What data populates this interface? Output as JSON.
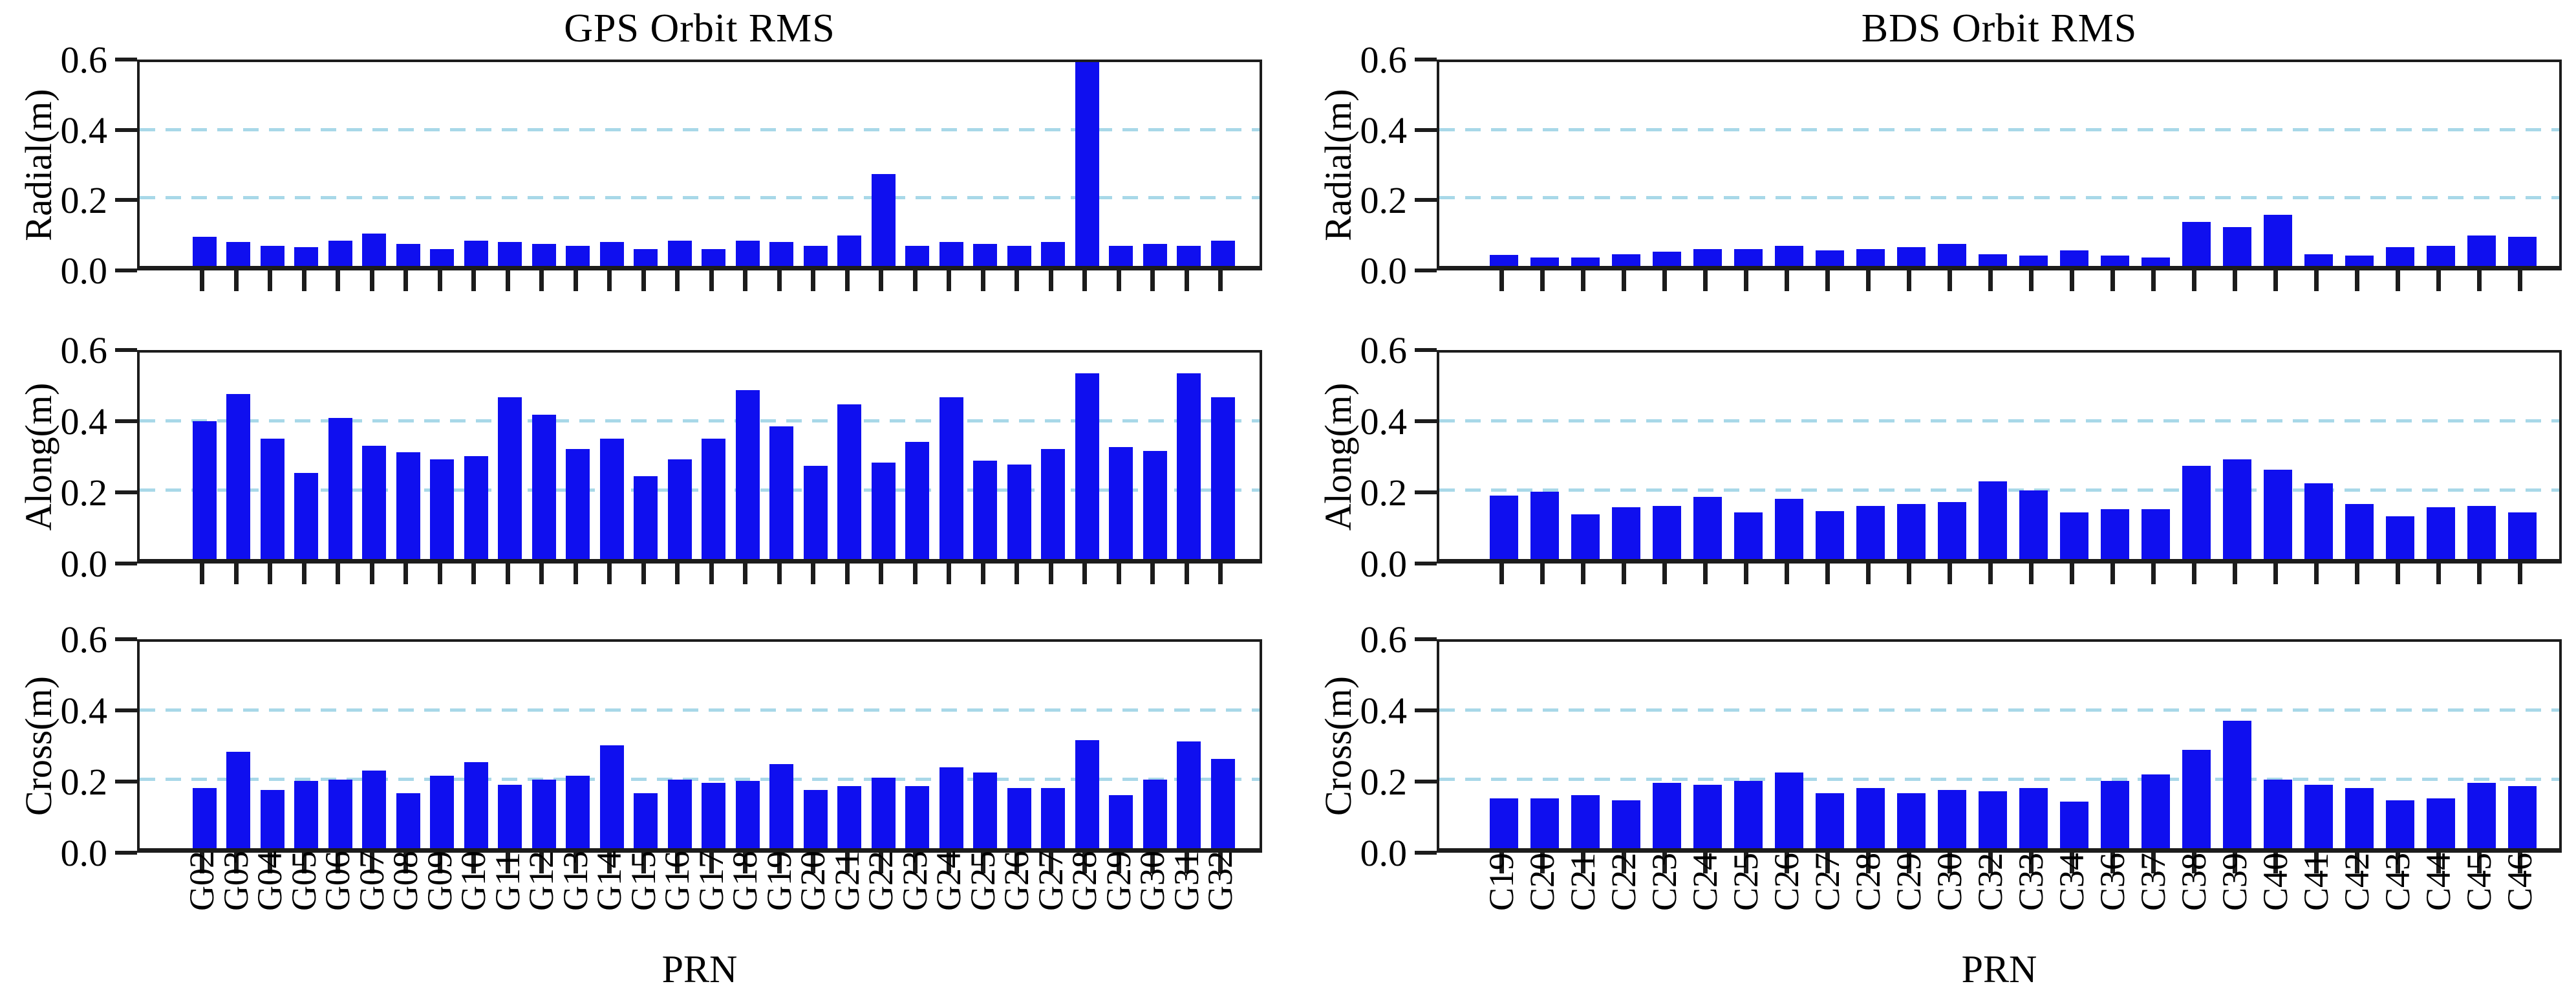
{
  "figure": {
    "titles": {
      "gps": "GPS Orbit RMS",
      "bds": "BDS Orbit RMS"
    },
    "xlabel": "PRN",
    "row_ylabels": [
      "Radial(m)",
      "Along(m)",
      "Cross(m)"
    ],
    "ytick_labels": [
      "0.0",
      "0.2",
      "0.4",
      "0.6"
    ],
    "colors": {
      "bar": "#0f0fef",
      "grid": "#a8d8e8",
      "axis": "#1c1c1c",
      "text": "#000000",
      "background": "#ffffff"
    }
  },
  "chart_data": [
    {
      "type": "bar",
      "id": "gps-radial",
      "title": "GPS Orbit RMS",
      "ylabel": "Radial(m)",
      "xlabel": "PRN",
      "ylim": [
        0,
        0.6
      ],
      "yticks": [
        0.0,
        0.2,
        0.4,
        0.6
      ],
      "gridlines_y": [
        0.2,
        0.4
      ],
      "grid_style": "dashed",
      "note": "G28 bar exceeds the axis maximum and is clipped at 0.6",
      "categories": [
        "G02",
        "G03",
        "G04",
        "G05",
        "G06",
        "G07",
        "G08",
        "G09",
        "G10",
        "G11",
        "G12",
        "G13",
        "G14",
        "G15",
        "G16",
        "G17",
        "G18",
        "G19",
        "G20",
        "G21",
        "G22",
        "G23",
        "G24",
        "G25",
        "G26",
        "G27",
        "G28",
        "G29",
        "G30",
        "G31",
        "G32"
      ],
      "values": [
        0.085,
        0.07,
        0.06,
        0.055,
        0.075,
        0.095,
        0.065,
        0.05,
        0.075,
        0.07,
        0.065,
        0.06,
        0.07,
        0.05,
        0.075,
        0.05,
        0.075,
        0.07,
        0.06,
        0.09,
        0.27,
        0.06,
        0.07,
        0.065,
        0.06,
        0.07,
        0.62,
        0.06,
        0.065,
        0.06,
        0.075
      ]
    },
    {
      "type": "bar",
      "id": "gps-along",
      "title": "GPS Orbit RMS",
      "ylabel": "Along(m)",
      "xlabel": "PRN",
      "ylim": [
        0,
        0.6
      ],
      "yticks": [
        0.0,
        0.2,
        0.4,
        0.6
      ],
      "gridlines_y": [
        0.2,
        0.4
      ],
      "grid_style": "dashed",
      "categories": [
        "G02",
        "G03",
        "G04",
        "G05",
        "G06",
        "G07",
        "G08",
        "G09",
        "G10",
        "G11",
        "G12",
        "G13",
        "G14",
        "G15",
        "G16",
        "G17",
        "G18",
        "G19",
        "G20",
        "G21",
        "G22",
        "G23",
        "G24",
        "G25",
        "G26",
        "G27",
        "G28",
        "G29",
        "G30",
        "G31",
        "G32"
      ],
      "values": [
        0.4,
        0.48,
        0.35,
        0.25,
        0.41,
        0.33,
        0.31,
        0.29,
        0.3,
        0.47,
        0.42,
        0.32,
        0.35,
        0.24,
        0.29,
        0.35,
        0.49,
        0.385,
        0.27,
        0.45,
        0.28,
        0.34,
        0.47,
        0.285,
        0.275,
        0.32,
        0.54,
        0.325,
        0.315,
        0.54,
        0.47
      ]
    },
    {
      "type": "bar",
      "id": "gps-cross",
      "title": "GPS Orbit RMS",
      "ylabel": "Cross(m)",
      "xlabel": "PRN",
      "ylim": [
        0,
        0.6
      ],
      "yticks": [
        0.0,
        0.2,
        0.4,
        0.6
      ],
      "gridlines_y": [
        0.2,
        0.4
      ],
      "grid_style": "dashed",
      "categories": [
        "G02",
        "G03",
        "G04",
        "G05",
        "G06",
        "G07",
        "G08",
        "G09",
        "G10",
        "G11",
        "G12",
        "G13",
        "G14",
        "G15",
        "G16",
        "G17",
        "G18",
        "G19",
        "G20",
        "G21",
        "G22",
        "G23",
        "G24",
        "G25",
        "G26",
        "G27",
        "G28",
        "G29",
        "G30",
        "G31",
        "G32"
      ],
      "values": [
        0.175,
        0.28,
        0.17,
        0.195,
        0.2,
        0.225,
        0.16,
        0.21,
        0.25,
        0.185,
        0.2,
        0.21,
        0.3,
        0.16,
        0.2,
        0.19,
        0.195,
        0.245,
        0.17,
        0.18,
        0.205,
        0.18,
        0.235,
        0.22,
        0.175,
        0.175,
        0.315,
        0.155,
        0.2,
        0.31,
        0.26
      ]
    },
    {
      "type": "bar",
      "id": "bds-radial",
      "title": "BDS Orbit RMS",
      "ylabel": "Radial(m)",
      "xlabel": "PRN",
      "ylim": [
        0,
        0.6
      ],
      "yticks": [
        0.0,
        0.2,
        0.4,
        0.6
      ],
      "gridlines_y": [
        0.2,
        0.4
      ],
      "grid_style": "dashed",
      "categories": [
        "C19",
        "C20",
        "C21",
        "C22",
        "C23",
        "C24",
        "C25",
        "C26",
        "C27",
        "C28",
        "C29",
        "C30",
        "C32",
        "C33",
        "C34",
        "C36",
        "C37",
        "C38",
        "C39",
        "C40",
        "C41",
        "C42",
        "C43",
        "C44",
        "C45",
        "C46"
      ],
      "values": [
        0.032,
        0.025,
        0.025,
        0.035,
        0.042,
        0.05,
        0.05,
        0.06,
        0.045,
        0.05,
        0.055,
        0.065,
        0.035,
        0.03,
        0.045,
        0.03,
        0.025,
        0.13,
        0.115,
        0.15,
        0.035,
        0.03,
        0.055,
        0.06,
        0.09,
        0.085
      ]
    },
    {
      "type": "bar",
      "id": "bds-along",
      "title": "BDS Orbit RMS",
      "ylabel": "Along(m)",
      "xlabel": "PRN",
      "ylim": [
        0,
        0.6
      ],
      "yticks": [
        0.0,
        0.2,
        0.4,
        0.6
      ],
      "gridlines_y": [
        0.2,
        0.4
      ],
      "grid_style": "dashed",
      "categories": [
        "C19",
        "C20",
        "C21",
        "C22",
        "C23",
        "C24",
        "C25",
        "C26",
        "C27",
        "C28",
        "C29",
        "C30",
        "C32",
        "C33",
        "C34",
        "C36",
        "C37",
        "C38",
        "C39",
        "C40",
        "C41",
        "C42",
        "C43",
        "C44",
        "C45",
        "C46"
      ],
      "values": [
        0.185,
        0.195,
        0.13,
        0.15,
        0.155,
        0.18,
        0.135,
        0.175,
        0.14,
        0.155,
        0.16,
        0.165,
        0.225,
        0.2,
        0.135,
        0.145,
        0.145,
        0.27,
        0.29,
        0.26,
        0.22,
        0.16,
        0.125,
        0.15,
        0.155,
        0.135
      ]
    },
    {
      "type": "bar",
      "id": "bds-cross",
      "title": "BDS Orbit RMS",
      "ylabel": "Cross(m)",
      "xlabel": "PRN",
      "ylim": [
        0,
        0.6
      ],
      "yticks": [
        0.0,
        0.2,
        0.4,
        0.6
      ],
      "gridlines_y": [
        0.2,
        0.4
      ],
      "grid_style": "dashed",
      "categories": [
        "C19",
        "C20",
        "C21",
        "C22",
        "C23",
        "C24",
        "C25",
        "C26",
        "C27",
        "C28",
        "C29",
        "C30",
        "C32",
        "C33",
        "C34",
        "C36",
        "C37",
        "C38",
        "C39",
        "C40",
        "C41",
        "C42",
        "C43",
        "C44",
        "C45",
        "C46"
      ],
      "values": [
        0.145,
        0.145,
        0.155,
        0.14,
        0.19,
        0.185,
        0.195,
        0.22,
        0.16,
        0.175,
        0.16,
        0.17,
        0.165,
        0.175,
        0.135,
        0.195,
        0.215,
        0.285,
        0.37,
        0.2,
        0.185,
        0.175,
        0.14,
        0.145,
        0.19,
        0.18
      ]
    }
  ]
}
